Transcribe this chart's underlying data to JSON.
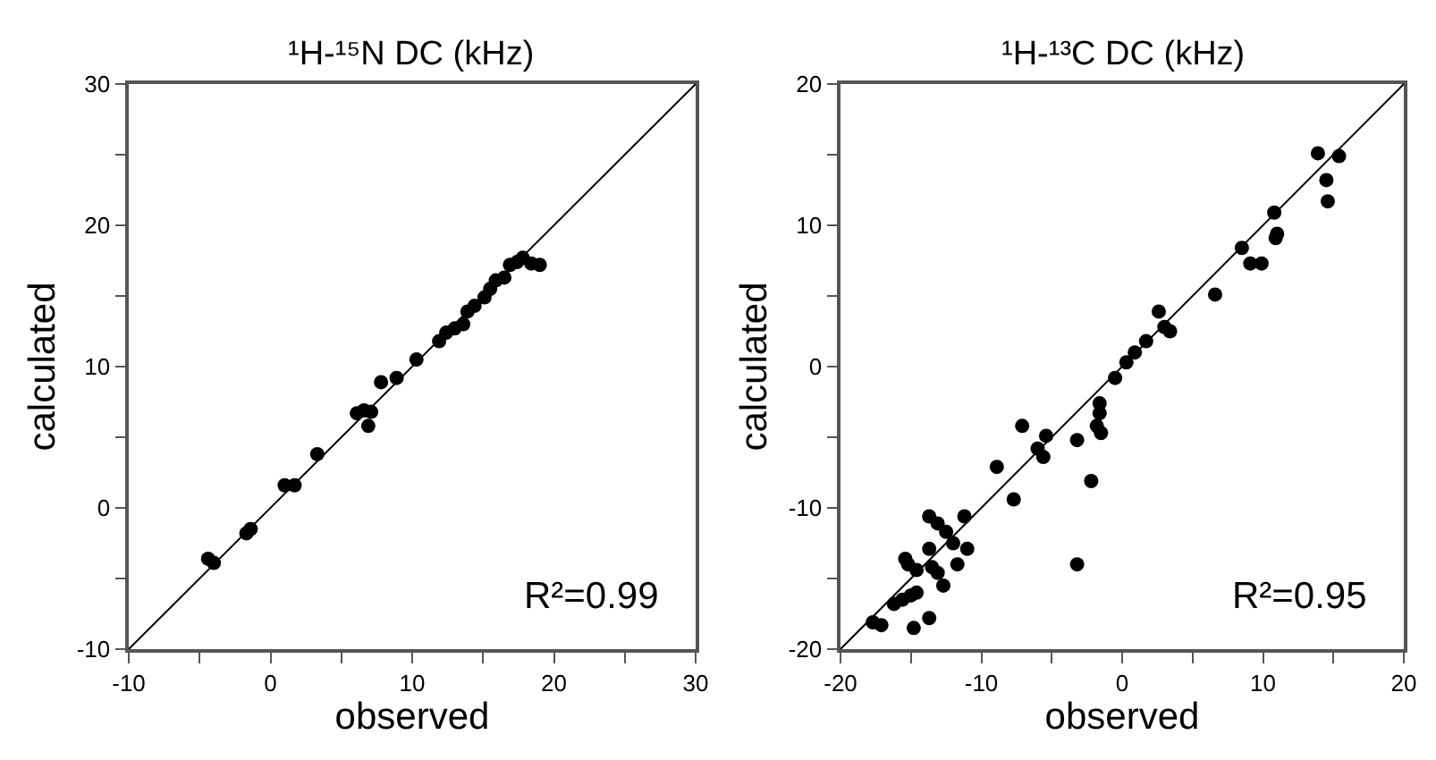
{
  "chart_data": [
    {
      "type": "scatter",
      "title": "¹H-¹⁵N DC (kHz)",
      "xlabel": "observed",
      "ylabel": "calculated",
      "annotations": [
        "R²=0.99"
      ],
      "xlim": [
        -10,
        30
      ],
      "ylim": [
        -10,
        30
      ],
      "xticks": [
        -10,
        {
          "value": -5,
          "label": null
        },
        0,
        {
          "value": 5,
          "label": null
        },
        10,
        {
          "value": 15,
          "label": null
        },
        20,
        {
          "value": 25,
          "label": null
        },
        30
      ],
      "yticks": [
        -10,
        {
          "value": -5,
          "label": null
        },
        0,
        {
          "value": 5,
          "label": null
        },
        10,
        {
          "value": 15,
          "label": null
        },
        20,
        {
          "value": 25,
          "label": null
        },
        30
      ],
      "marker": "circle",
      "series": [
        {
          "color": "#000000",
          "x": [
            -4.4,
            -4.0,
            -1.7,
            -1.4,
            1.0,
            1.7,
            3.3,
            6.1,
            6.6,
            7.1,
            6.9,
            7.8,
            8.9,
            10.3,
            11.9,
            12.4,
            13.0,
            13.6,
            13.9,
            14.4,
            15.1,
            15.5,
            15.9,
            16.5,
            16.9,
            17.4,
            17.8,
            18.4,
            19.0
          ],
          "values": [
            -3.6,
            -3.9,
            -1.8,
            -1.5,
            1.6,
            1.6,
            3.8,
            6.7,
            6.9,
            6.8,
            5.8,
            8.9,
            9.2,
            10.5,
            11.8,
            12.4,
            12.7,
            13.0,
            13.9,
            14.3,
            14.9,
            15.5,
            16.1,
            16.3,
            17.2,
            17.4,
            17.7,
            17.3,
            17.2
          ]
        },
        {
          "type": "line",
          "color": "#000000",
          "marker": "none",
          "x": [
            -10,
            30
          ],
          "values": [
            -10,
            30
          ]
        }
      ]
    },
    {
      "type": "scatter",
      "title": "¹H-¹³C DC (kHz)",
      "xlabel": "observed",
      "ylabel": "calculated",
      "annotations": [
        "R²=0.95"
      ],
      "xlim": [
        -20,
        20
      ],
      "ylim": [
        -20,
        20
      ],
      "xticks": [
        -20,
        {
          "value": -15,
          "label": null
        },
        -10,
        {
          "value": -5,
          "label": null
        },
        0,
        {
          "value": 5,
          "label": null
        },
        10,
        {
          "value": 15,
          "label": null
        },
        20
      ],
      "yticks": [
        -20,
        {
          "value": -15,
          "label": null
        },
        -10,
        {
          "value": -5,
          "label": null
        },
        0,
        {
          "value": 5,
          "label": null
        },
        10,
        {
          "value": 15,
          "label": null
        },
        20
      ],
      "marker": "circle",
      "series": [
        {
          "color": "#000000",
          "x": [
            -17.7,
            -17.1,
            -14.8,
            -13.7,
            -16.2,
            -15.6,
            -15.0,
            -14.6,
            -15.4,
            -15.2,
            -14.6,
            -13.7,
            -13.5,
            -13.1,
            -12.7,
            -13.7,
            -13.1,
            -12.5,
            -12.0,
            -11.7,
            -11.0,
            -11.2,
            -8.9,
            -7.7,
            -7.1,
            -6.0,
            -5.6,
            -5.4,
            -3.2,
            -3.2,
            -2.2,
            -1.6,
            -1.6,
            -1.8,
            -1.5,
            -0.5,
            0.3,
            0.9,
            1.7,
            2.6,
            3.0,
            3.4,
            6.6,
            8.5,
            9.1,
            9.9,
            10.8,
            10.9,
            11.0,
            13.9,
            15.4,
            14.5,
            14.6
          ],
          "values": [
            -18.1,
            -18.3,
            -18.5,
            -17.8,
            -16.8,
            -16.5,
            -16.2,
            -16.0,
            -13.6,
            -14.0,
            -14.4,
            -12.9,
            -14.2,
            -14.6,
            -15.5,
            -10.6,
            -11.1,
            -11.7,
            -12.5,
            -14.0,
            -12.9,
            -10.6,
            -7.1,
            -9.4,
            -4.2,
            -5.8,
            -6.4,
            -4.9,
            -5.2,
            -14.0,
            -8.1,
            -2.6,
            -3.3,
            -4.2,
            -4.7,
            -0.8,
            0.3,
            1.0,
            1.8,
            3.9,
            2.8,
            2.5,
            5.1,
            8.4,
            7.3,
            7.3,
            10.9,
            9.1,
            9.4,
            15.1,
            14.9,
            13.2,
            11.7
          ]
        },
        {
          "type": "line",
          "color": "#000000",
          "marker": "none",
          "x": [
            -20,
            20
          ],
          "values": [
            -20,
            20
          ]
        }
      ]
    }
  ]
}
